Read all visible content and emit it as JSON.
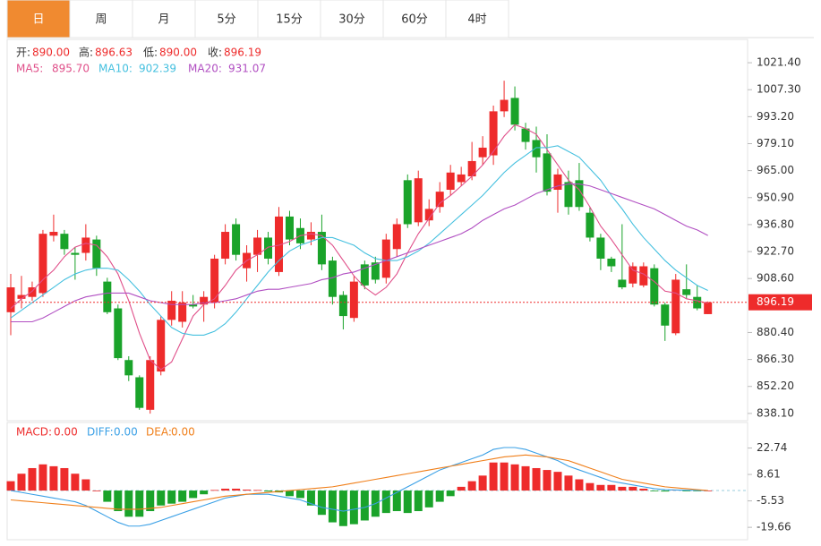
{
  "tabs": [
    "日",
    "周",
    "月",
    "5分",
    "15分",
    "30分",
    "60分",
    "4时"
  ],
  "chart_data": [
    {
      "type": "candlestick",
      "info": [
        {
          "label": "开:",
          "value": 890.0,
          "value_label": "890.00"
        },
        {
          "label": "高:",
          "value": 896.63,
          "value_label": "896.63"
        },
        {
          "label": "低:",
          "value": 890.0,
          "value_label": "890.00"
        },
        {
          "label": "收:",
          "value": 896.19,
          "value_label": "896.19"
        }
      ],
      "up_color": "#ee2b2b",
      "down_color": "#1aa32a",
      "open": [
        891,
        898,
        899,
        901,
        931,
        932,
        922,
        922,
        929,
        907,
        893,
        866,
        857,
        840,
        860,
        887,
        886,
        895,
        895,
        896,
        919,
        937,
        914,
        921,
        930,
        912,
        941,
        935,
        929,
        933,
        918,
        900,
        888,
        916,
        917,
        909,
        924,
        960,
        938,
        939,
        946,
        955,
        959,
        962,
        972,
        973,
        996,
        1003,
        987,
        981,
        974,
        955,
        959,
        960,
        943,
        930,
        919,
        908,
        906,
        905,
        914,
        895,
        880,
        903,
        899,
        890.0
      ],
      "high": [
        911,
        910,
        907,
        934,
        942,
        934,
        925,
        937,
        931,
        909,
        895,
        868,
        858,
        868,
        889,
        902,
        902,
        900,
        902,
        921,
        937,
        940,
        926,
        934,
        933,
        946,
        944,
        940,
        938,
        942,
        920,
        902,
        910,
        918,
        920,
        932,
        940,
        963,
        965,
        950,
        959,
        968,
        967,
        980,
        983,
        999,
        1012,
        1009,
        990,
        988,
        984,
        966,
        965,
        969,
        946,
        932,
        920,
        937,
        917,
        917,
        916,
        896,
        911,
        916,
        905,
        896.63
      ],
      "low": [
        879,
        893,
        897,
        899,
        928,
        921,
        908,
        918,
        910,
        890,
        866,
        855,
        840,
        838,
        858,
        884,
        883,
        893,
        886,
        893,
        916,
        918,
        907,
        912,
        916,
        910,
        926,
        924,
        926,
        913,
        895,
        882,
        886,
        903,
        906,
        906,
        920,
        935,
        936,
        936,
        943,
        952,
        957,
        960,
        968,
        968,
        993,
        986,
        976,
        964,
        952,
        943,
        942,
        944,
        928,
        913,
        912,
        903,
        904,
        904,
        894,
        876,
        879,
        898,
        892,
        890.0
      ],
      "close": [
        904,
        900,
        904,
        932,
        933,
        924,
        921,
        930,
        914,
        891,
        867,
        858,
        841,
        866,
        887,
        897,
        896,
        894,
        899,
        919,
        933,
        921,
        922,
        930,
        919,
        941,
        929,
        927,
        933,
        916,
        899,
        889,
        907,
        905,
        908,
        929,
        937,
        937,
        961,
        945,
        954,
        964,
        963,
        970,
        977,
        996,
        1002,
        989,
        980,
        972,
        954,
        963,
        946,
        946,
        930,
        919,
        915,
        904,
        915,
        915,
        895,
        884,
        908,
        900,
        893,
        896.19
      ],
      "series": [
        {
          "name": "MA5:",
          "color": "#e0508a",
          "legend_value": "895.70",
          "values": [
            893,
            898,
            902,
            908,
            913,
            920,
            925,
            927,
            926,
            920,
            911,
            897,
            880,
            866,
            861,
            865,
            877,
            889,
            895,
            898,
            905,
            913,
            918,
            921,
            925,
            926,
            928,
            931,
            932,
            931,
            926,
            918,
            910,
            904,
            900,
            904,
            911,
            922,
            932,
            940,
            948,
            952,
            957,
            962,
            968,
            975,
            983,
            989,
            987,
            984,
            976,
            968,
            960,
            955,
            946,
            936,
            929,
            921,
            913,
            911,
            907,
            902,
            901,
            898,
            897,
            895.7
          ]
        },
        {
          "name": "MA10:",
          "color": "#45c0df",
          "legend_value": "902.39",
          "values": [
            888,
            892,
            896,
            900,
            904,
            908,
            911,
            913,
            914,
            914,
            913,
            908,
            902,
            895,
            889,
            883,
            880,
            879,
            879,
            881,
            885,
            891,
            898,
            905,
            912,
            918,
            923,
            926,
            928,
            930,
            930,
            928,
            926,
            922,
            919,
            918,
            918,
            920,
            923,
            927,
            932,
            937,
            942,
            947,
            952,
            958,
            964,
            969,
            973,
            977,
            977,
            978,
            975,
            972,
            966,
            960,
            952,
            945,
            937,
            930,
            924,
            918,
            913,
            909,
            905,
            902.39
          ]
        },
        {
          "name": "MA20:",
          "color": "#b14fc2",
          "legend_value": "931.07",
          "values": [
            886,
            886,
            886,
            888,
            891,
            894,
            897,
            899,
            900,
            901,
            901,
            901,
            899,
            897,
            896,
            895,
            895,
            895,
            896,
            896,
            897,
            898,
            900,
            902,
            903,
            903,
            904,
            905,
            906,
            908,
            909,
            911,
            912,
            914,
            916,
            918,
            920,
            922,
            924,
            926,
            928,
            930,
            932,
            935,
            939,
            942,
            945,
            947,
            950,
            953,
            955,
            957,
            958,
            958,
            957,
            955,
            953,
            951,
            949,
            947,
            945,
            942,
            939,
            936,
            934,
            931.07
          ]
        }
      ],
      "last": {
        "value": 896.19,
        "label": "896.19",
        "color": "#ee2b2b"
      },
      "ylim": [
        834.3,
        1033.6
      ],
      "yticks": [
        {
          "value": 1021.4,
          "label": "1021.40"
        },
        {
          "value": 1007.3,
          "label": "1007.30"
        },
        {
          "value": 993.2,
          "label": "993.20"
        },
        {
          "value": 979.1,
          "label": "979.10"
        },
        {
          "value": 965,
          "label": "965.00"
        },
        {
          "value": 950.9,
          "label": "950.90"
        },
        {
          "value": 936.8,
          "label": "936.80"
        },
        {
          "value": 922.7,
          "label": "922.70"
        },
        {
          "value": 908.6,
          "label": "908.60"
        },
        {
          "value": 880.4,
          "label": "880.40"
        },
        {
          "value": 866.3,
          "label": "866.30"
        },
        {
          "value": 852.2,
          "label": "852.20"
        },
        {
          "value": 838.1,
          "label": "838.10"
        }
      ]
    },
    {
      "type": "macd",
      "series": [
        {
          "name": "MACD:",
          "color": "#ee2b2b",
          "down_color": "#1aa32a",
          "legend_value": "0.00",
          "values": [
            5,
            9,
            12,
            14,
            13,
            12,
            9,
            6,
            0,
            -6,
            -11,
            -14,
            -14,
            -11,
            -8,
            -7,
            -6,
            -4,
            -2,
            0.3,
            1,
            1,
            0.5,
            0.3,
            -0.5,
            -1,
            -3,
            -4,
            -8,
            -13,
            -17,
            -19,
            -18,
            -16,
            -14,
            -12,
            -11,
            -12,
            -11,
            -9,
            -6,
            -3,
            2,
            5,
            8,
            15,
            15,
            14,
            13,
            12,
            11,
            10,
            8,
            6,
            4,
            3,
            3,
            2,
            2,
            1,
            -0.3,
            -0.5,
            0.5,
            -0.3,
            -0.2,
            0
          ]
        },
        {
          "name": "DIFF:",
          "color": "#3aa0e6",
          "legend_value": "0.00",
          "values": [
            0,
            -1,
            -2,
            -3,
            -4,
            -5,
            -6,
            -8,
            -11,
            -14,
            -17,
            -19,
            -19,
            -18,
            -16,
            -14,
            -12,
            -10,
            -8,
            -6,
            -4,
            -3,
            -2,
            -2,
            -2,
            -3,
            -4,
            -5,
            -7,
            -9,
            -10,
            -11,
            -10,
            -9,
            -7,
            -4,
            -1,
            2,
            5,
            8,
            11,
            13,
            15,
            17,
            19,
            22,
            23,
            23,
            22,
            20,
            18,
            16,
            13,
            11,
            9,
            7,
            5,
            4,
            3,
            2,
            1,
            0.5,
            0.3,
            0.2,
            0.1,
            0
          ]
        },
        {
          "name": "DEA:",
          "color": "#f07f1a",
          "legend_value": "0.00",
          "values": [
            -5,
            -5.5,
            -6,
            -6.5,
            -7,
            -7.5,
            -8,
            -8.5,
            -9,
            -9.5,
            -10,
            -10,
            -10,
            -9.5,
            -9,
            -8,
            -7,
            -6,
            -5,
            -4,
            -3,
            -2.5,
            -2,
            -1.5,
            -1,
            -0.5,
            0,
            0.5,
            1,
            1.5,
            2,
            3,
            4,
            5,
            6,
            7,
            8,
            9,
            10,
            11,
            12,
            13,
            14,
            15,
            16,
            17,
            18,
            18.5,
            19,
            18.5,
            18,
            17,
            16,
            14,
            12,
            10,
            8,
            6,
            5,
            4,
            3,
            2,
            1.5,
            1,
            0.5,
            0
          ]
        }
      ],
      "ylim": [
        -26.3,
        36.4
      ],
      "yticks": [
        22.74,
        8.61,
        -5.53,
        -19.66
      ]
    }
  ]
}
